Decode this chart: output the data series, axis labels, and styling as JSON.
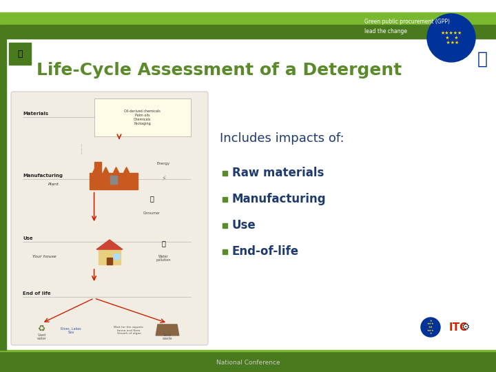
{
  "title": "Life-Cycle Assessment of a Detergent",
  "title_color": "#5a8a2a",
  "title_fontsize": 18,
  "title_bold": true,
  "subtitle": "Includes impacts of:",
  "subtitle_color": "#1e3a6e",
  "subtitle_fontsize": 13,
  "bullet_items": [
    "Raw materials",
    "Manufacturing",
    "Use",
    "End-of-life"
  ],
  "bullet_color": "#1e3a6e",
  "bullet_fontsize": 12,
  "bullet_marker_color": "#5a8a2a",
  "bg_color": "#ffffff",
  "top_light_green": "#7ab830",
  "top_dark_green": "#4a7a1e",
  "bottom_bar_color": "#4a7a1e",
  "bottom_text": "National Conference",
  "bottom_text_color": "#cccccc",
  "left_bar_color": "#4a7a1e",
  "top_right_text1": "Green public procurement (GPP)",
  "top_right_text2": "lead the change",
  "top_right_text_color": "#ffffff",
  "diagram_bg": "#f2ede2",
  "diagram_border": "#cccccc",
  "chemicals_box_bg": "#fffbe6",
  "stages": [
    "Materials",
    "Manufacturing",
    "Use",
    "End of life"
  ],
  "stage_color": "#222222",
  "arrow_color": "#cc2200",
  "plant_label": "Plant",
  "house_label": "Your house",
  "energy_label": "Energy",
  "chemicals_text": "Oil-derived chemicals\nPalm oils\nChemicals\nPackaging"
}
